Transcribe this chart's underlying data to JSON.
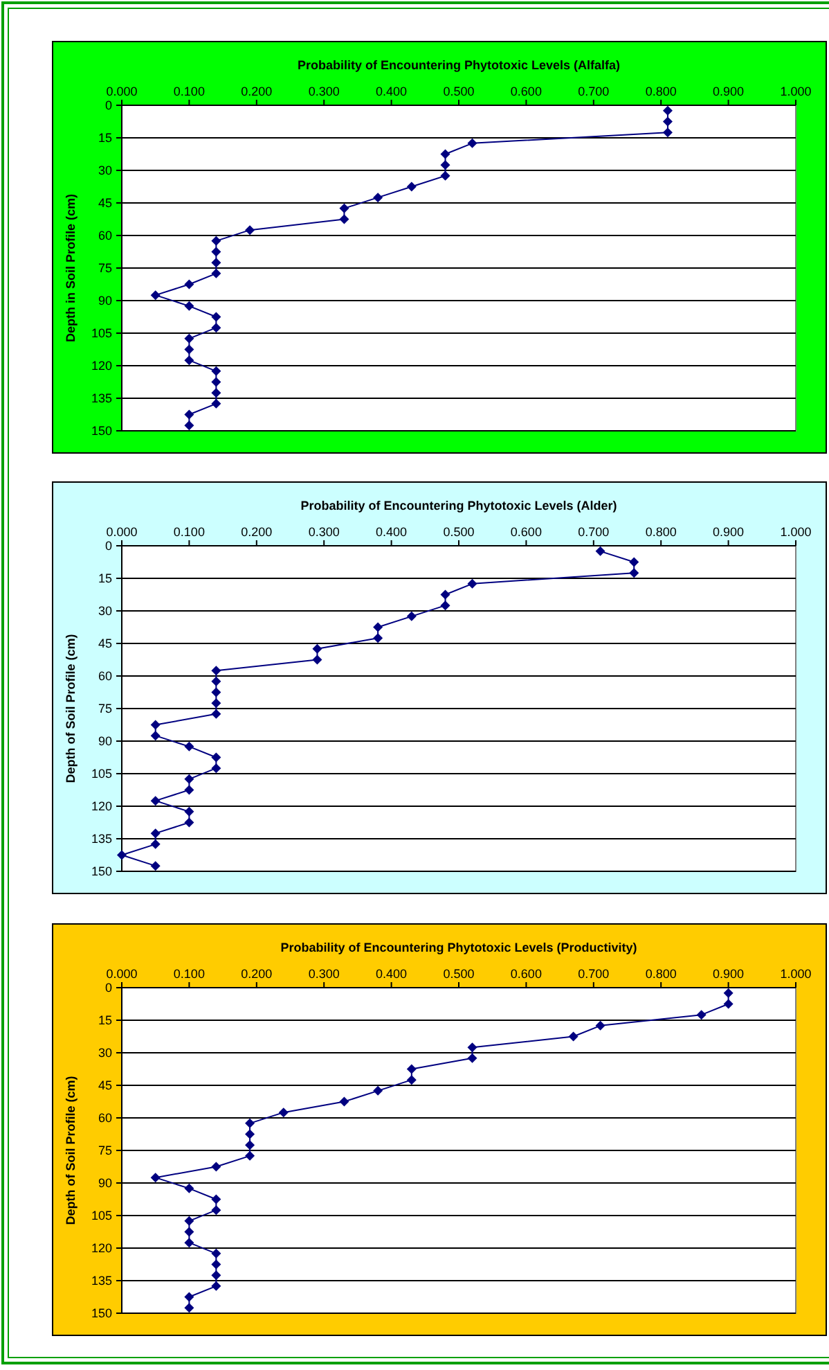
{
  "chart_data": [
    {
      "type": "line",
      "title": "Probability of Encountering Phytotoxic Levels (Alfalfa)",
      "ylabel": "Depth in Soil Profile (cm)",
      "xlim": [
        0,
        1
      ],
      "xticks": [
        {
          "value": 0,
          "label": "0.000"
        },
        {
          "value": 0.1,
          "label": "0.100"
        },
        {
          "value": 0.2,
          "label": "0.200"
        },
        {
          "value": 0.3,
          "label": "0.300"
        },
        {
          "value": 0.4,
          "label": "0.400"
        },
        {
          "value": 0.5,
          "label": "0.500"
        },
        {
          "value": 0.6,
          "label": "0.600"
        },
        {
          "value": 0.7,
          "label": "0.700"
        },
        {
          "value": 0.8,
          "label": "0.800"
        },
        {
          "value": 0.9,
          "label": "0.900"
        },
        {
          "value": 1,
          "label": "1.000"
        }
      ],
      "ylim": [
        150,
        0
      ],
      "yticks": [
        0,
        15,
        30,
        45,
        60,
        75,
        90,
        105,
        120,
        135,
        150
      ],
      "grid": "y",
      "marker": "diamond",
      "line_style": "solid",
      "series": [
        {
          "color": "#000080",
          "x": [
            0.81,
            0.81,
            0.81,
            0.52,
            0.48,
            0.48,
            0.48,
            0.43,
            0.38,
            0.33,
            0.33,
            0.19,
            0.14,
            0.14,
            0.14,
            0.14,
            0.1,
            0.05,
            0.1,
            0.14,
            0.14,
            0.1,
            0.1,
            0.1,
            0.14,
            0.14,
            0.14,
            0.14,
            0.1,
            0.1
          ],
          "values": [
            2.5,
            7.5,
            12.5,
            17.5,
            22.5,
            27.5,
            32.5,
            37.5,
            42.5,
            47.5,
            52.5,
            57.5,
            62.5,
            67.5,
            72.5,
            77.5,
            82.5,
            87.5,
            92.5,
            97.5,
            102.5,
            107.5,
            112.5,
            117.5,
            122.5,
            127.5,
            132.5,
            137.5,
            142.5,
            147.5
          ]
        }
      ]
    },
    {
      "type": "line",
      "title": "Probability of Encountering Phytotoxic Levels (Alder)",
      "ylabel": "Depth of Soil Profile (cm)",
      "xlim": [
        0,
        1
      ],
      "xticks": [
        {
          "value": 0,
          "label": "0.000"
        },
        {
          "value": 0.1,
          "label": "0.100"
        },
        {
          "value": 0.2,
          "label": "0.200"
        },
        {
          "value": 0.3,
          "label": "0.300"
        },
        {
          "value": 0.4,
          "label": "0.400"
        },
        {
          "value": 0.5,
          "label": "0.500"
        },
        {
          "value": 0.6,
          "label": "0.600"
        },
        {
          "value": 0.7,
          "label": "0.700"
        },
        {
          "value": 0.8,
          "label": "0.800"
        },
        {
          "value": 0.9,
          "label": "0.900"
        },
        {
          "value": 1,
          "label": "1.000"
        }
      ],
      "ylim": [
        150,
        0
      ],
      "yticks": [
        0,
        15,
        30,
        45,
        60,
        75,
        90,
        105,
        120,
        135,
        150
      ],
      "grid": "y",
      "marker": "diamond",
      "line_style": "solid",
      "series": [
        {
          "color": "#000080",
          "x": [
            0.71,
            0.76,
            0.76,
            0.52,
            0.48,
            0.48,
            0.43,
            0.38,
            0.38,
            0.29,
            0.29,
            0.14,
            0.14,
            0.14,
            0.14,
            0.14,
            0.05,
            0.05,
            0.1,
            0.14,
            0.14,
            0.1,
            0.1,
            0.05,
            0.1,
            0.1,
            0.05,
            0.05,
            0.0,
            0.05
          ],
          "values": [
            2.5,
            7.5,
            12.5,
            17.5,
            22.5,
            27.5,
            32.5,
            37.5,
            42.5,
            47.5,
            52.5,
            57.5,
            62.5,
            67.5,
            72.5,
            77.5,
            82.5,
            87.5,
            92.5,
            97.5,
            102.5,
            107.5,
            112.5,
            117.5,
            122.5,
            127.5,
            132.5,
            137.5,
            142.5,
            147.5
          ]
        }
      ]
    },
    {
      "type": "line",
      "title": "Probability of Encountering Phytotoxic Levels (Productivity)",
      "ylabel": "Depth of Soil Profile (cm)",
      "xlim": [
        0,
        1
      ],
      "xticks": [
        {
          "value": 0,
          "label": "0.000"
        },
        {
          "value": 0.1,
          "label": "0.100"
        },
        {
          "value": 0.2,
          "label": "0.200"
        },
        {
          "value": 0.3,
          "label": "0.300"
        },
        {
          "value": 0.4,
          "label": "0.400"
        },
        {
          "value": 0.5,
          "label": "0.500"
        },
        {
          "value": 0.6,
          "label": "0.600"
        },
        {
          "value": 0.7,
          "label": "0.700"
        },
        {
          "value": 0.8,
          "label": "0.800"
        },
        {
          "value": 0.9,
          "label": "0.900"
        },
        {
          "value": 1,
          "label": "1.000"
        }
      ],
      "ylim": [
        150,
        0
      ],
      "yticks": [
        0,
        15,
        30,
        45,
        60,
        75,
        90,
        105,
        120,
        135,
        150
      ],
      "grid": "y",
      "marker": "diamond",
      "line_style": "solid",
      "series": [
        {
          "color": "#000080",
          "x": [
            0.9,
            0.9,
            0.86,
            0.71,
            0.67,
            0.52,
            0.52,
            0.43,
            0.43,
            0.38,
            0.33,
            0.24,
            0.19,
            0.19,
            0.19,
            0.19,
            0.14,
            0.05,
            0.1,
            0.14,
            0.14,
            0.1,
            0.1,
            0.1,
            0.14,
            0.14,
            0.14,
            0.14,
            0.1,
            0.1
          ],
          "values": [
            2.5,
            7.5,
            12.5,
            17.5,
            22.5,
            27.5,
            32.5,
            37.5,
            42.5,
            47.5,
            52.5,
            57.5,
            62.5,
            67.5,
            72.5,
            77.5,
            82.5,
            87.5,
            92.5,
            97.5,
            102.5,
            107.5,
            112.5,
            117.5,
            122.5,
            127.5,
            132.5,
            137.5,
            142.5,
            147.5
          ]
        }
      ]
    }
  ]
}
